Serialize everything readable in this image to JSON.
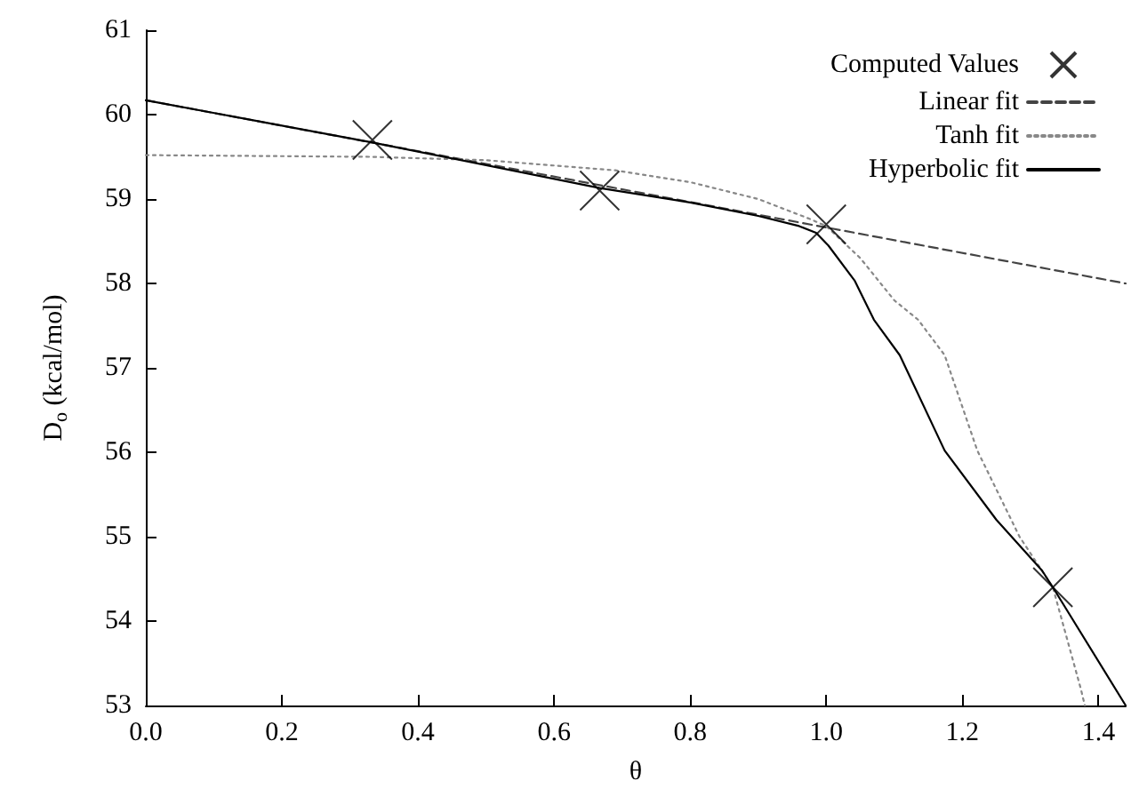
{
  "chart_data": {
    "type": "line",
    "xlabel": "θ",
    "ylabel": "D$_{o}$ (kcal/mol)",
    "xlim": [
      0,
      1.44
    ],
    "xticks": [
      {
        "value": 0,
        "label": "0.0"
      },
      0.2,
      0.4,
      0.6,
      0.8,
      {
        "value": 1,
        "label": "1.0"
      },
      1.2,
      1.4
    ],
    "ylim": [
      53,
      61
    ],
    "yticks": [
      53,
      54,
      55,
      56,
      57,
      58,
      59,
      60,
      61
    ],
    "grid": false,
    "legend": "top right",
    "series": [
      {
        "name": "Computed Values",
        "type": "scatter",
        "marker": "cross",
        "color": "#000000",
        "x": [
          0.333,
          0.667,
          1.0,
          1.333
        ],
        "values": [
          59.7,
          59.1,
          58.7,
          54.4
        ]
      },
      {
        "name": "Linear fit",
        "line_style": "dashed",
        "marker": "none",
        "color": "#444444",
        "x": [
          0,
          1.44
        ],
        "values": [
          60.17,
          58.0
        ]
      },
      {
        "name": "Tanh fit",
        "line_style": "dotted",
        "marker": "none",
        "color": "#888888",
        "x": [
          0,
          0.33,
          0.5,
          0.69,
          0.8,
          0.9,
          0.974,
          1.0,
          1.05,
          1.1,
          1.135,
          1.174,
          1.222,
          1.284,
          1.333,
          1.374,
          1.38
        ],
        "values": [
          59.52,
          59.5,
          59.46,
          59.34,
          59.2,
          59.0,
          58.77,
          58.68,
          58.3,
          57.8,
          57.57,
          57.15,
          56.02,
          55.0,
          54.4,
          53.2,
          53
        ]
      },
      {
        "name": "Hyperbolic fit",
        "line_style": "solid",
        "marker": "none",
        "color": "#000000",
        "x": [
          0,
          0.333,
          0.667,
          0.8,
          0.9,
          0.96,
          0.985,
          1.003,
          1.042,
          1.07,
          1.108,
          1.174,
          1.25,
          1.317,
          1.333,
          1.44
        ],
        "values": [
          60.17,
          59.67,
          59.13,
          58.96,
          58.8,
          58.68,
          58.6,
          58.45,
          58.03,
          57.57,
          57.15,
          56.02,
          55.2,
          54.6,
          54.4,
          53
        ]
      }
    ]
  }
}
